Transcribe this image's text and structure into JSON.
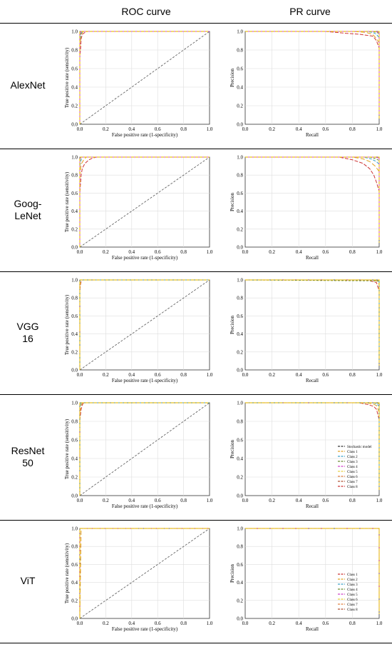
{
  "headers": {
    "roc": "ROC curve",
    "pr": "PR curve"
  },
  "roc_axes": {
    "xlabel": "False positive rate (1-specificity)",
    "ylabel": "True positive rate (sensitivity)"
  },
  "pr_axes": {
    "xlabel": "Recall",
    "ylabel": "Precision"
  },
  "ticks": [
    "0.0",
    "0.2",
    "0.4",
    "0.6",
    "0.8",
    "1.0"
  ],
  "colors": {
    "diagonal": "#555555",
    "classes": [
      "#cc3333",
      "#e0a020",
      "#3aa0c8",
      "#6a8a30",
      "#d040c8",
      "#e8d040",
      "#e08040",
      "#b05030"
    ]
  },
  "legend_resnet": [
    "Stochastic model",
    "Class 1",
    "Class 2",
    "Class 3",
    "Class 4",
    "Class 5",
    "Class 6",
    "Class 7",
    "Class 8"
  ],
  "legend_vit": [
    "Class 1",
    "Class 2",
    "Class 3",
    "Class 4",
    "Class 5",
    "Class 6",
    "Class 7",
    "Class 8"
  ],
  "models": [
    {
      "name": "AlexNet"
    },
    {
      "name": "Goog-\nLeNet"
    },
    {
      "name": "VGG\n16"
    },
    {
      "name": "ResNet\n50"
    },
    {
      "name": "ViT"
    }
  ],
  "chart_data": [
    {
      "type": "line",
      "model": "AlexNet",
      "kind": "ROC",
      "xlim": [
        0,
        1
      ],
      "ylim": [
        0,
        1
      ],
      "series": [
        {
          "values": [
            [
              0,
              0
            ],
            [
              0,
              0.72
            ],
            [
              0.005,
              0.8
            ],
            [
              0.01,
              0.92
            ],
            [
              0.02,
              0.97
            ],
            [
              0.04,
              0.99
            ],
            [
              0.06,
              1
            ],
            [
              1,
              1
            ]
          ]
        },
        {
          "values": [
            [
              0,
              0
            ],
            [
              0,
              0.85
            ],
            [
              0.01,
              0.96
            ],
            [
              0.02,
              0.99
            ],
            [
              0.03,
              1
            ],
            [
              1,
              1
            ]
          ]
        },
        {
          "values": [
            [
              0,
              0
            ],
            [
              0,
              0.9
            ],
            [
              0.01,
              0.98
            ],
            [
              0.02,
              1
            ],
            [
              1,
              1
            ]
          ]
        },
        {
          "values": [
            [
              0,
              0
            ],
            [
              0,
              0.95
            ],
            [
              0.01,
              1
            ],
            [
              1,
              1
            ]
          ]
        },
        {
          "values": [
            [
              0,
              0
            ],
            [
              0,
              0.97
            ],
            [
              0.01,
              1
            ],
            [
              1,
              1
            ]
          ]
        }
      ]
    },
    {
      "type": "line",
      "model": "AlexNet",
      "kind": "PR",
      "xlim": [
        0,
        1
      ],
      "ylim": [
        0,
        1
      ],
      "series": [
        {
          "values": [
            [
              0,
              1
            ],
            [
              0.6,
              1
            ],
            [
              0.75,
              0.98
            ],
            [
              0.85,
              0.97
            ],
            [
              0.9,
              0.96
            ],
            [
              0.95,
              0.95
            ],
            [
              0.97,
              0.92
            ],
            [
              0.98,
              0.9
            ],
            [
              1,
              0.82
            ],
            [
              1,
              0.2
            ]
          ]
        },
        {
          "values": [
            [
              0,
              1
            ],
            [
              0.8,
              1
            ],
            [
              0.9,
              0.99
            ],
            [
              0.95,
              0.97
            ],
            [
              0.97,
              0.94
            ],
            [
              1,
              0.88
            ],
            [
              1,
              0.15
            ]
          ]
        },
        {
          "values": [
            [
              0,
              1
            ],
            [
              0.9,
              1
            ],
            [
              0.95,
              0.99
            ],
            [
              0.98,
              0.97
            ],
            [
              1,
              0.93
            ],
            [
              1,
              0.1
            ]
          ]
        },
        {
          "values": [
            [
              0,
              1
            ],
            [
              0.95,
              1
            ],
            [
              1,
              0.98
            ],
            [
              1,
              0.1
            ]
          ]
        },
        {
          "values": [
            [
              0,
              1
            ],
            [
              0.97,
              1
            ],
            [
              1,
              0.99
            ],
            [
              1,
              0.1
            ]
          ]
        }
      ]
    },
    {
      "type": "line",
      "model": "GoogLeNet",
      "kind": "ROC",
      "xlim": [
        0,
        1
      ],
      "ylim": [
        0,
        1
      ],
      "series": [
        {
          "values": [
            [
              0,
              0
            ],
            [
              0,
              0.6
            ],
            [
              0.01,
              0.8
            ],
            [
              0.02,
              0.88
            ],
            [
              0.04,
              0.93
            ],
            [
              0.07,
              0.97
            ],
            [
              0.1,
              0.99
            ],
            [
              0.13,
              1
            ],
            [
              1,
              1
            ]
          ]
        },
        {
          "values": [
            [
              0,
              0
            ],
            [
              0,
              0.8
            ],
            [
              0.01,
              0.92
            ],
            [
              0.03,
              0.97
            ],
            [
              0.05,
              1
            ],
            [
              1,
              1
            ]
          ]
        },
        {
          "values": [
            [
              0,
              0
            ],
            [
              0,
              0.9
            ],
            [
              0.01,
              0.97
            ],
            [
              0.02,
              1
            ],
            [
              1,
              1
            ]
          ]
        },
        {
          "values": [
            [
              0,
              0
            ],
            [
              0,
              0.96
            ],
            [
              0.01,
              1
            ],
            [
              1,
              1
            ]
          ]
        },
        {
          "values": [
            [
              0,
              0
            ],
            [
              0,
              0.98
            ],
            [
              0.01,
              1
            ],
            [
              1,
              1
            ]
          ]
        }
      ]
    },
    {
      "type": "line",
      "model": "GoogLeNet",
      "kind": "PR",
      "xlim": [
        0,
        1
      ],
      "ylim": [
        0,
        1
      ],
      "series": [
        {
          "values": [
            [
              0,
              1
            ],
            [
              0.7,
              1
            ],
            [
              0.8,
              0.97
            ],
            [
              0.88,
              0.93
            ],
            [
              0.93,
              0.87
            ],
            [
              0.96,
              0.8
            ],
            [
              0.98,
              0.72
            ],
            [
              1,
              0.62
            ],
            [
              1,
              0.1
            ]
          ]
        },
        {
          "values": [
            [
              0,
              1
            ],
            [
              0.8,
              1
            ],
            [
              0.88,
              0.98
            ],
            [
              0.93,
              0.95
            ],
            [
              0.97,
              0.9
            ],
            [
              1,
              0.84
            ],
            [
              1,
              0.1
            ]
          ]
        },
        {
          "values": [
            [
              0,
              1
            ],
            [
              0.88,
              1
            ],
            [
              0.94,
              0.98
            ],
            [
              0.98,
              0.95
            ],
            [
              1,
              0.92
            ],
            [
              1,
              0.1
            ]
          ]
        },
        {
          "values": [
            [
              0,
              1
            ],
            [
              0.93,
              1
            ],
            [
              0.98,
              0.98
            ],
            [
              1,
              0.96
            ],
            [
              1,
              0.1
            ]
          ]
        },
        {
          "values": [
            [
              0,
              1
            ],
            [
              0.97,
              1
            ],
            [
              1,
              0.99
            ],
            [
              1,
              0.1
            ]
          ]
        }
      ]
    },
    {
      "type": "line",
      "model": "VGG16",
      "kind": "ROC",
      "xlim": [
        0,
        1
      ],
      "ylim": [
        0,
        1
      ],
      "series": [
        {
          "values": [
            [
              0,
              0
            ],
            [
              0,
              0.88
            ],
            [
              0.005,
              0.95
            ],
            [
              0.01,
              0.98
            ],
            [
              0.02,
              1
            ],
            [
              1,
              1
            ]
          ]
        },
        {
          "values": [
            [
              0,
              0
            ],
            [
              0,
              0.94
            ],
            [
              0.01,
              0.99
            ],
            [
              0.015,
              1
            ],
            [
              1,
              1
            ]
          ]
        },
        {
          "values": [
            [
              0,
              0
            ],
            [
              0,
              0.97
            ],
            [
              0.01,
              1
            ],
            [
              1,
              1
            ]
          ]
        },
        {
          "values": [
            [
              0,
              0
            ],
            [
              0,
              0.99
            ],
            [
              0.005,
              1
            ],
            [
              1,
              1
            ]
          ]
        }
      ]
    },
    {
      "type": "line",
      "model": "VGG16",
      "kind": "PR",
      "xlim": [
        0,
        1
      ],
      "ylim": [
        0,
        1
      ],
      "series": [
        {
          "values": [
            [
              0,
              1
            ],
            [
              0.9,
              1
            ],
            [
              0.96,
              0.98
            ],
            [
              0.98,
              0.97
            ],
            [
              1,
              0.88
            ],
            [
              1,
              0.1
            ]
          ]
        },
        {
          "values": [
            [
              0,
              1
            ],
            [
              0.95,
              1
            ],
            [
              0.98,
              0.99
            ],
            [
              1,
              0.95
            ],
            [
              1,
              0.1
            ]
          ]
        },
        {
          "values": [
            [
              0,
              1
            ],
            [
              0.98,
              1
            ],
            [
              1,
              0.98
            ],
            [
              1,
              0.1
            ]
          ]
        },
        {
          "values": [
            [
              0,
              1
            ],
            [
              1,
              0.99
            ],
            [
              1,
              0.1
            ]
          ]
        }
      ]
    },
    {
      "type": "line",
      "model": "ResNet50",
      "kind": "ROC",
      "xlim": [
        0,
        1
      ],
      "ylim": [
        0,
        1
      ],
      "series": [
        {
          "values": [
            [
              0,
              0
            ],
            [
              0,
              0.82
            ],
            [
              0.01,
              0.93
            ],
            [
              0.02,
              0.98
            ],
            [
              0.03,
              1
            ],
            [
              1,
              1
            ]
          ]
        },
        {
          "values": [
            [
              0,
              0
            ],
            [
              0,
              0.9
            ],
            [
              0.01,
              0.97
            ],
            [
              0.02,
              1
            ],
            [
              1,
              1
            ]
          ]
        },
        {
          "values": [
            [
              0,
              0
            ],
            [
              0,
              0.95
            ],
            [
              0.01,
              1
            ],
            [
              1,
              1
            ]
          ]
        },
        {
          "values": [
            [
              0,
              0
            ],
            [
              0,
              0.98
            ],
            [
              0.005,
              1
            ],
            [
              1,
              1
            ]
          ]
        }
      ]
    },
    {
      "type": "line",
      "model": "ResNet50",
      "kind": "PR",
      "xlim": [
        0,
        1
      ],
      "ylim": [
        0,
        1
      ],
      "series": [
        {
          "values": [
            [
              0,
              1
            ],
            [
              0.85,
              1
            ],
            [
              0.92,
              0.98
            ],
            [
              0.96,
              0.96
            ],
            [
              0.98,
              0.93
            ],
            [
              1,
              0.82
            ],
            [
              1,
              0.75
            ]
          ]
        },
        {
          "values": [
            [
              0,
              1
            ],
            [
              0.9,
              1
            ],
            [
              0.95,
              0.99
            ],
            [
              0.98,
              0.97
            ],
            [
              1,
              0.9
            ],
            [
              1,
              0.1
            ]
          ]
        },
        {
          "values": [
            [
              0,
              1
            ],
            [
              0.95,
              1
            ],
            [
              0.98,
              0.99
            ],
            [
              1,
              0.96
            ],
            [
              1,
              0.1
            ]
          ]
        },
        {
          "values": [
            [
              0,
              1
            ],
            [
              0.98,
              1
            ],
            [
              1,
              0.99
            ],
            [
              1,
              0.1
            ]
          ]
        }
      ]
    },
    {
      "type": "line",
      "model": "ViT",
      "kind": "ROC",
      "xlim": [
        0,
        1
      ],
      "ylim": [
        0,
        1
      ],
      "series": [
        {
          "values": [
            [
              0,
              0
            ],
            [
              0,
              1
            ],
            [
              1,
              1
            ]
          ]
        },
        {
          "values": [
            [
              0,
              0
            ],
            [
              0.01,
              1
            ],
            [
              1,
              1
            ]
          ]
        }
      ]
    },
    {
      "type": "line",
      "model": "ViT",
      "kind": "PR",
      "xlim": [
        0,
        1
      ],
      "ylim": [
        0,
        1
      ],
      "series": [
        {
          "values": [
            [
              0,
              1
            ],
            [
              0.99,
              1
            ],
            [
              1,
              0.99
            ],
            [
              1,
              0.1
            ]
          ]
        },
        {
          "values": [
            [
              0,
              1
            ],
            [
              1,
              1
            ],
            [
              1,
              0.1
            ]
          ]
        }
      ]
    }
  ]
}
